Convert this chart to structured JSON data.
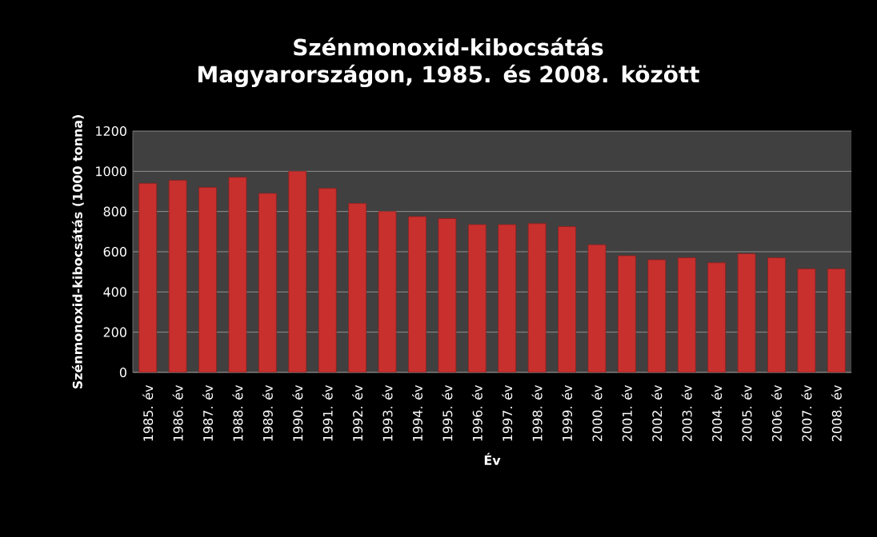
{
  "chart_data": {
    "type": "bar",
    "title": "Szénmonoxid-kibocsátás Magyarországon, 1985. és 2008. között",
    "xlabel": "Év",
    "ylabel": "Szénmonoxid-kibocsátás  (1000 tonna)",
    "categories": [
      "1985. év",
      "1986. év",
      "1987. év",
      "1988. év",
      "1989. év",
      "1990. év",
      "1991. év",
      "1992. év",
      "1993. év",
      "1994. év",
      "1995. év",
      "1996. év",
      "1997. év",
      "1998. év",
      "1999. év",
      "2000. év",
      "2001. év",
      "2002. év",
      "2003. év",
      "2004. év",
      "2005. év",
      "2006. év",
      "2007. év",
      "2008. év"
    ],
    "values": [
      940,
      955,
      920,
      970,
      890,
      1000,
      915,
      840,
      800,
      775,
      765,
      735,
      735,
      740,
      725,
      635,
      580,
      560,
      570,
      545,
      590,
      570,
      515,
      515
    ],
    "color": "#c8302e",
    "ylim": [
      0,
      1200
    ],
    "yticks": [
      0,
      200,
      400,
      600,
      800,
      1000,
      1200
    ],
    "grid": "y"
  }
}
